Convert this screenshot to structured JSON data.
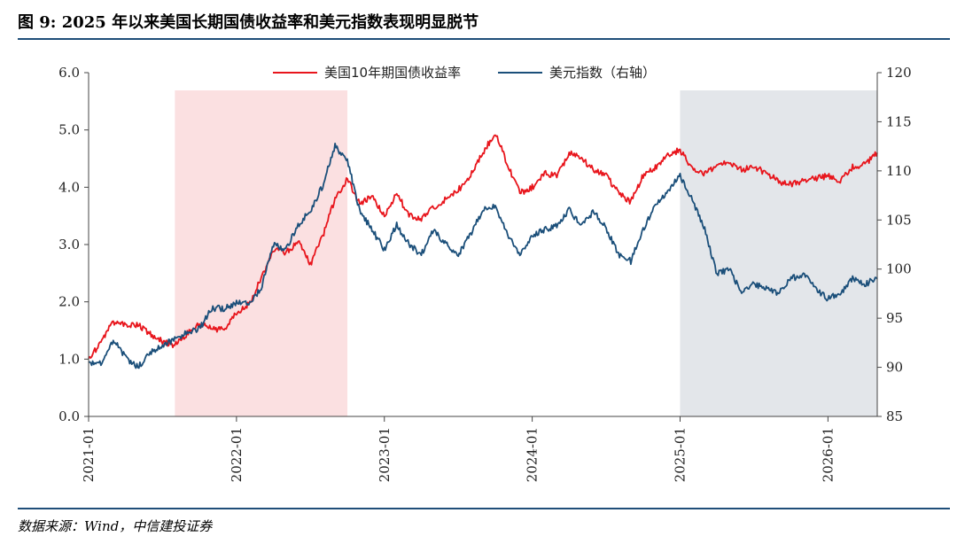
{
  "figure": {
    "title": "图 9: 2025 年以来美国长期国债收益率和美元指数表现明显脱节",
    "source": "数据来源：Wind，中信建投证券"
  },
  "chart_data": {
    "type": "line",
    "x_ticks": [
      "2021-01",
      "2022-01",
      "2023-01",
      "2024-01",
      "2025-01",
      "2026-01"
    ],
    "x_range": [
      "2021-01",
      "2026-05"
    ],
    "y_left_ticks": [
      "0.0",
      "1.0",
      "2.0",
      "3.0",
      "4.0",
      "5.0",
      "6.0"
    ],
    "y_left_range": [
      0,
      6
    ],
    "y_right_ticks": [
      "85",
      "90",
      "95",
      "100",
      "105",
      "110",
      "115",
      "120"
    ],
    "y_right_range": [
      85,
      120
    ],
    "legend_placement": "top-center",
    "shaded_periods": [
      {
        "start": "2021-08",
        "end": "2022-10",
        "color": "#fbe0e1"
      },
      {
        "start": "2025-01",
        "end": "2026-05",
        "color": "#e3e6ea"
      }
    ],
    "series": [
      {
        "name": "美国10年期国债收益率",
        "axis": "left",
        "color": "#e8151c",
        "points": [
          [
            "2021-01",
            1.0
          ],
          [
            "2021-02",
            1.3
          ],
          [
            "2021-03",
            1.65
          ],
          [
            "2021-04",
            1.6
          ],
          [
            "2021-05",
            1.6
          ],
          [
            "2021-06",
            1.45
          ],
          [
            "2021-07",
            1.3
          ],
          [
            "2021-08",
            1.25
          ],
          [
            "2021-09",
            1.45
          ],
          [
            "2021-10",
            1.6
          ],
          [
            "2021-11",
            1.55
          ],
          [
            "2021-12",
            1.5
          ],
          [
            "2022-01",
            1.8
          ],
          [
            "2022-02",
            1.95
          ],
          [
            "2022-03",
            2.4
          ],
          [
            "2022-04",
            2.9
          ],
          [
            "2022-05",
            2.85
          ],
          [
            "2022-06",
            3.05
          ],
          [
            "2022-07",
            2.65
          ],
          [
            "2022-08",
            3.15
          ],
          [
            "2022-09",
            3.8
          ],
          [
            "2022-10",
            4.15
          ],
          [
            "2022-11",
            3.7
          ],
          [
            "2022-12",
            3.85
          ],
          [
            "2023-01",
            3.5
          ],
          [
            "2023-02",
            3.9
          ],
          [
            "2023-03",
            3.5
          ],
          [
            "2023-04",
            3.45
          ],
          [
            "2023-05",
            3.65
          ],
          [
            "2023-06",
            3.8
          ],
          [
            "2023-07",
            3.95
          ],
          [
            "2023-08",
            4.2
          ],
          [
            "2023-09",
            4.6
          ],
          [
            "2023-10",
            4.95
          ],
          [
            "2023-11",
            4.4
          ],
          [
            "2023-12",
            3.9
          ],
          [
            "2024-01",
            4.0
          ],
          [
            "2024-02",
            4.25
          ],
          [
            "2024-03",
            4.2
          ],
          [
            "2024-04",
            4.6
          ],
          [
            "2024-05",
            4.5
          ],
          [
            "2024-06",
            4.3
          ],
          [
            "2024-07",
            4.2
          ],
          [
            "2024-08",
            3.9
          ],
          [
            "2024-09",
            3.75
          ],
          [
            "2024-10",
            4.2
          ],
          [
            "2024-11",
            4.35
          ],
          [
            "2024-12",
            4.55
          ],
          [
            "2025-01",
            4.65
          ],
          [
            "2025-02",
            4.3
          ],
          [
            "2025-03",
            4.25
          ],
          [
            "2025-04",
            4.35
          ],
          [
            "2025-05",
            4.45
          ],
          [
            "2025-06",
            4.3
          ],
          [
            "2025-07",
            4.35
          ],
          [
            "2025-08",
            4.25
          ],
          [
            "2025-09",
            4.1
          ],
          [
            "2025-10",
            4.05
          ],
          [
            "2025-11",
            4.1
          ],
          [
            "2025-12",
            4.15
          ],
          [
            "2026-01",
            4.2
          ],
          [
            "2026-02",
            4.1
          ],
          [
            "2026-03",
            4.35
          ],
          [
            "2026-04",
            4.4
          ],
          [
            "2026-05",
            4.6
          ]
        ]
      },
      {
        "name": "美元指数（右轴）",
        "axis": "right",
        "color": "#1b4f7a",
        "points": [
          [
            "2021-01",
            90.3
          ],
          [
            "2021-02",
            90.5
          ],
          [
            "2021-03",
            92.8
          ],
          [
            "2021-04",
            91.0
          ],
          [
            "2021-05",
            90.0
          ],
          [
            "2021-06",
            91.5
          ],
          [
            "2021-07",
            92.3
          ],
          [
            "2021-08",
            92.8
          ],
          [
            "2021-09",
            93.5
          ],
          [
            "2021-10",
            93.9
          ],
          [
            "2021-11",
            96.0
          ],
          [
            "2021-12",
            96.0
          ],
          [
            "2022-01",
            96.5
          ],
          [
            "2022-02",
            96.5
          ],
          [
            "2022-03",
            98.0
          ],
          [
            "2022-04",
            102.5
          ],
          [
            "2022-05",
            102.0
          ],
          [
            "2022-06",
            104.5
          ],
          [
            "2022-07",
            106.0
          ],
          [
            "2022-08",
            108.5
          ],
          [
            "2022-09",
            112.5
          ],
          [
            "2022-10",
            111.0
          ],
          [
            "2022-11",
            106.0
          ],
          [
            "2022-12",
            104.0
          ],
          [
            "2023-01",
            102.0
          ],
          [
            "2023-02",
            104.5
          ],
          [
            "2023-03",
            102.5
          ],
          [
            "2023-04",
            101.5
          ],
          [
            "2023-05",
            104.0
          ],
          [
            "2023-06",
            102.5
          ],
          [
            "2023-07",
            101.5
          ],
          [
            "2023-08",
            103.5
          ],
          [
            "2023-09",
            106.0
          ],
          [
            "2023-10",
            106.5
          ],
          [
            "2023-11",
            103.5
          ],
          [
            "2023-12",
            101.5
          ],
          [
            "2024-01",
            103.5
          ],
          [
            "2024-02",
            104.0
          ],
          [
            "2024-03",
            104.5
          ],
          [
            "2024-04",
            106.0
          ],
          [
            "2024-05",
            104.5
          ],
          [
            "2024-06",
            105.8
          ],
          [
            "2024-07",
            104.2
          ],
          [
            "2024-08",
            101.5
          ],
          [
            "2024-09",
            100.8
          ],
          [
            "2024-10",
            104.0
          ],
          [
            "2024-11",
            106.5
          ],
          [
            "2024-12",
            108.0
          ],
          [
            "2025-01",
            109.5
          ],
          [
            "2025-02",
            107.0
          ],
          [
            "2025-03",
            104.0
          ],
          [
            "2025-04",
            99.5
          ],
          [
            "2025-05",
            100.0
          ],
          [
            "2025-06",
            97.5
          ],
          [
            "2025-07",
            98.5
          ],
          [
            "2025-08",
            98.0
          ],
          [
            "2025-09",
            97.5
          ],
          [
            "2025-10",
            99.0
          ],
          [
            "2025-11",
            99.5
          ],
          [
            "2025-12",
            98.0
          ],
          [
            "2026-01",
            97.0
          ],
          [
            "2026-02",
            97.5
          ],
          [
            "2026-03",
            99.0
          ],
          [
            "2026-04",
            98.5
          ],
          [
            "2026-05",
            99.0
          ]
        ]
      }
    ]
  }
}
